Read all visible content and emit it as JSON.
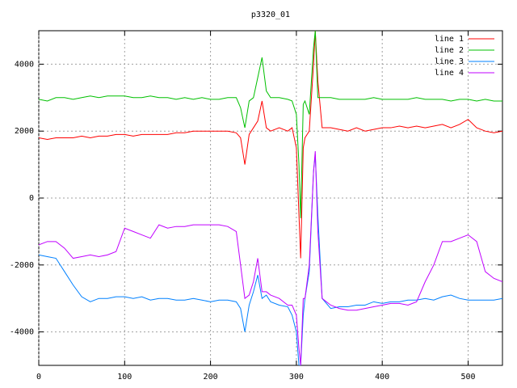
{
  "chart_data": {
    "type": "line",
    "title": "p3320_01",
    "x": [
      0,
      10,
      20,
      30,
      40,
      50,
      60,
      70,
      80,
      90,
      100,
      110,
      120,
      130,
      140,
      150,
      160,
      170,
      180,
      190,
      200,
      210,
      220,
      230,
      235,
      240,
      245,
      250,
      255,
      260,
      265,
      270,
      280,
      290,
      295,
      300,
      303,
      305,
      308,
      310,
      315,
      320,
      322,
      325,
      330,
      340,
      350,
      360,
      370,
      380,
      390,
      400,
      410,
      420,
      430,
      440,
      450,
      460,
      470,
      480,
      490,
      500,
      510,
      520,
      530,
      540
    ],
    "series": [
      {
        "name": "line 1",
        "color": "#ff0000",
        "values": [
          1800,
          1750,
          1800,
          1800,
          1800,
          1850,
          1800,
          1850,
          1850,
          1900,
          1900,
          1850,
          1900,
          1900,
          1900,
          1900,
          1950,
          1950,
          2000,
          2000,
          2000,
          2000,
          2000,
          1950,
          1800,
          1000,
          1900,
          2100,
          2300,
          2900,
          2100,
          2000,
          2100,
          2000,
          2100,
          1500,
          -500,
          -1800,
          1500,
          1800,
          2000,
          4000,
          5000,
          3500,
          2100,
          2100,
          2050,
          2000,
          2100,
          2000,
          2050,
          2100,
          2100,
          2150,
          2100,
          2150,
          2100,
          2150,
          2200,
          2100,
          2200,
          2350,
          2100,
          2000,
          1950,
          2000
        ]
      },
      {
        "name": "line 2",
        "color": "#00c000",
        "values": [
          2950,
          2900,
          3000,
          3000,
          2950,
          3000,
          3050,
          3000,
          3050,
          3050,
          3050,
          3000,
          3000,
          3050,
          3000,
          3000,
          2950,
          3000,
          2950,
          3000,
          2950,
          2950,
          3000,
          3000,
          2700,
          2100,
          2900,
          3000,
          3600,
          4200,
          3200,
          3000,
          3000,
          2950,
          2900,
          2500,
          1000,
          -600,
          2800,
          2900,
          2500,
          4500,
          5000,
          3000,
          3000,
          3000,
          2950,
          2950,
          2950,
          2950,
          3000,
          2950,
          2950,
          2950,
          2950,
          3000,
          2950,
          2950,
          2950,
          2900,
          2950,
          2950,
          2900,
          2950,
          2900,
          2900
        ]
      },
      {
        "name": "line 3",
        "color": "#0080ff",
        "values": [
          -1700,
          -1750,
          -1800,
          -2200,
          -2600,
          -2950,
          -3100,
          -3000,
          -3000,
          -2950,
          -2950,
          -3000,
          -2950,
          -3050,
          -3000,
          -3000,
          -3050,
          -3050,
          -3000,
          -3050,
          -3100,
          -3050,
          -3050,
          -3100,
          -3300,
          -4000,
          -3200,
          -2800,
          -2300,
          -3000,
          -2900,
          -3100,
          -3200,
          -3250,
          -3500,
          -4000,
          -5000,
          -5000,
          -3500,
          -3000,
          -2200,
          800,
          1300,
          -500,
          -3000,
          -3300,
          -3250,
          -3250,
          -3200,
          -3200,
          -3100,
          -3150,
          -3100,
          -3100,
          -3050,
          -3050,
          -3000,
          -3050,
          -2950,
          -2900,
          -3000,
          -3050,
          -3050,
          -3050,
          -3050,
          -3000
        ]
      },
      {
        "name": "line 4",
        "color": "#c000ff",
        "values": [
          -1400,
          -1300,
          -1300,
          -1500,
          -1800,
          -1750,
          -1700,
          -1750,
          -1700,
          -1600,
          -900,
          -1000,
          -1100,
          -1200,
          -800,
          -900,
          -850,
          -850,
          -800,
          -800,
          -800,
          -800,
          -850,
          -1000,
          -2000,
          -3000,
          -2900,
          -2500,
          -1800,
          -2800,
          -2800,
          -2900,
          -3000,
          -3200,
          -3200,
          -3500,
          -4500,
          -5000,
          -3000,
          -3000,
          -2000,
          800,
          1400,
          -1000,
          -3000,
          -3200,
          -3300,
          -3350,
          -3350,
          -3300,
          -3250,
          -3200,
          -3150,
          -3150,
          -3200,
          -3100,
          -2500,
          -2000,
          -1300,
          -1300,
          -1200,
          -1100,
          -1300,
          -2200,
          -2400,
          -2500
        ]
      }
    ],
    "xlim": [
      0,
      540
    ],
    "ylim": [
      -5000,
      5000
    ],
    "xticks": [
      0,
      100,
      200,
      300,
      400,
      500
    ],
    "yticks": [
      -4000,
      -2000,
      0,
      2000,
      4000
    ],
    "grid": true,
    "legend": "top-right"
  }
}
